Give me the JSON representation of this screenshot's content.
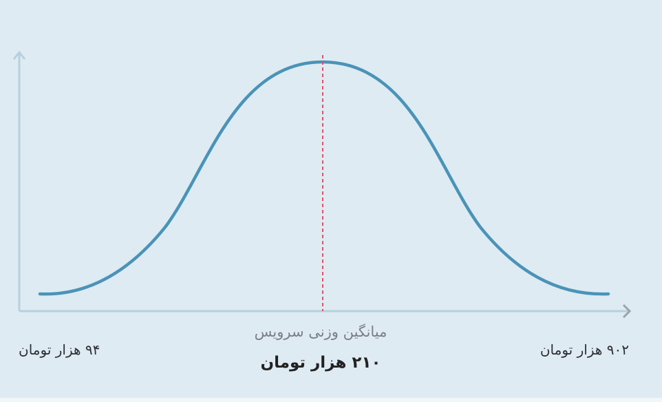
{
  "labels": {
    "min": "۹۴ هزار تومان",
    "max": "۹۰۲ هزار تومان",
    "mean_caption": "میانگین وزنی سرویس",
    "mean_value": "۲۱۰ هزار تومان"
  }
}
